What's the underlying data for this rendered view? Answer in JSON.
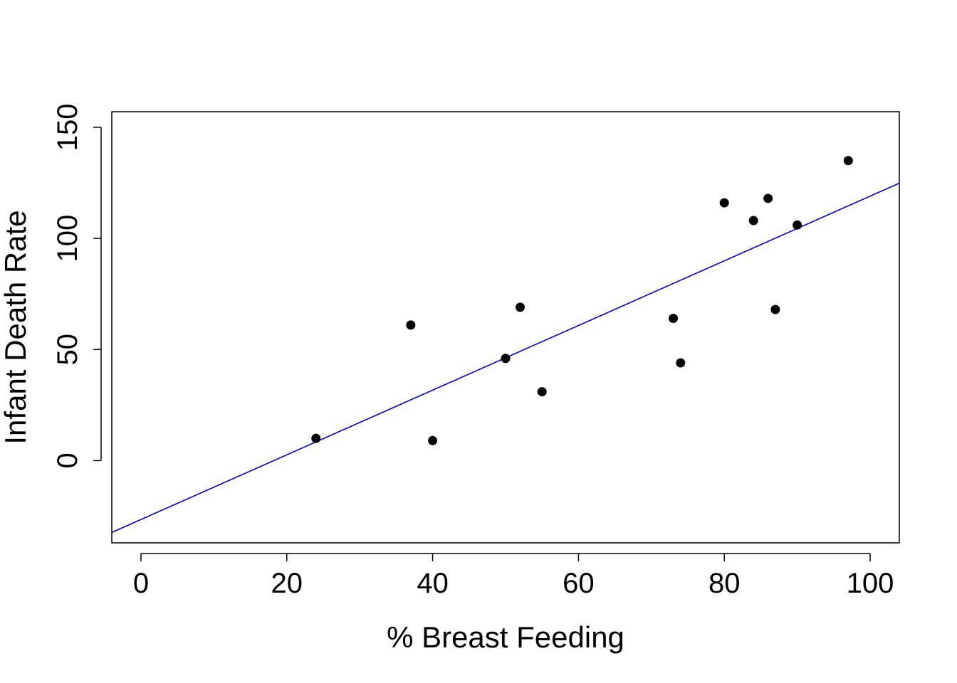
{
  "chart_data": {
    "type": "scatter",
    "title": "",
    "xlabel": "% Breast Feeding",
    "ylabel": "Infant Death Rate",
    "xlim": [
      -4,
      104
    ],
    "ylim": [
      -37,
      157
    ],
    "x_ticks": [
      0,
      20,
      40,
      60,
      80,
      100
    ],
    "y_ticks": [
      0,
      50,
      100,
      150
    ],
    "x_tick_labels": [
      "0",
      "20",
      "40",
      "60",
      "80",
      "100"
    ],
    "y_tick_labels": [
      "0",
      "50",
      "100",
      "150"
    ],
    "grid": false,
    "points": [
      {
        "x": 24,
        "y": 10
      },
      {
        "x": 37,
        "y": 61
      },
      {
        "x": 40,
        "y": 9
      },
      {
        "x": 50,
        "y": 46
      },
      {
        "x": 52,
        "y": 69
      },
      {
        "x": 55,
        "y": 31
      },
      {
        "x": 73,
        "y": 64
      },
      {
        "x": 74,
        "y": 44
      },
      {
        "x": 80,
        "y": 116
      },
      {
        "x": 84,
        "y": 108
      },
      {
        "x": 86,
        "y": 118
      },
      {
        "x": 87,
        "y": 68
      },
      {
        "x": 90,
        "y": 106
      },
      {
        "x": 97,
        "y": 135
      }
    ],
    "fit_line": {
      "intercept": -26.5,
      "slope": 1.455
    },
    "point_color": "#000000",
    "line_color": "#0000cc"
  }
}
